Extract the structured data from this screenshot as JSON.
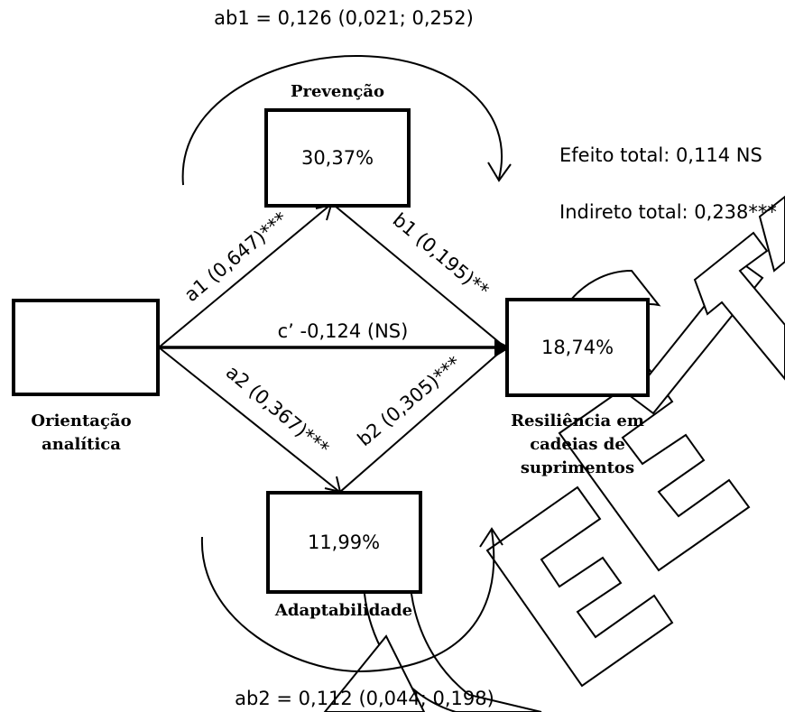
{
  "ab1": "ab1 = 0,126 (0,021; 0,252)",
  "ab2": "ab2 = 0,112 (0,044; 0,198)",
  "efeito_total": "Efeito total: 0,114 NS",
  "indireto_total": "Indireto total: 0,238***",
  "nodes": {
    "prevencao": {
      "title": "Prevenção",
      "value": "30,37%"
    },
    "adaptabilidade": {
      "title": "Adaptabilidade",
      "value": "11,99%"
    },
    "orientacao": {
      "title_line1": "Orientação",
      "title_line2": "analítica"
    },
    "resiliencia": {
      "title_line1": "Resiliência em",
      "title_line2": "cadeias de",
      "title_line3": "suprimentos",
      "value": "18,74%"
    }
  },
  "paths": {
    "a1": "a1 (0,647)***",
    "a2": "a2 (0,367)***",
    "b1": "b1 (0,195)**",
    "b2": "b2 (0,305)***",
    "c_prime": "c’ -0,124 (NS)"
  },
  "watermark": "ACCEPTED"
}
